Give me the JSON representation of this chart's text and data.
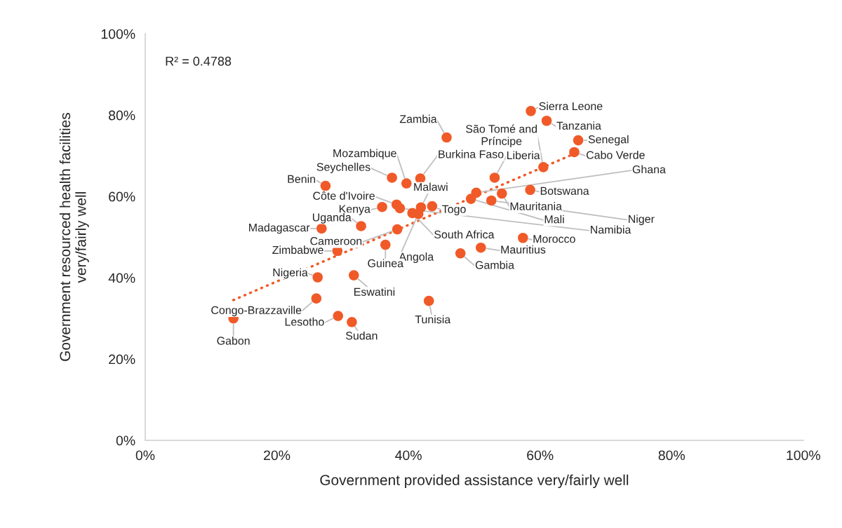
{
  "chart_data": {
    "type": "scatter",
    "xlabel": "Government provided assistance very/fairly well",
    "ylabel": "Government resourced health facilities\nvery/fairly well",
    "marker": "circle",
    "grid": false,
    "xlim": [
      0,
      100
    ],
    "ylim": [
      0,
      100
    ],
    "xticks": [
      {
        "value": 0,
        "label": "0%"
      },
      {
        "value": 20,
        "label": "20%"
      },
      {
        "value": 40,
        "label": "40%"
      },
      {
        "value": 60,
        "label": "60%"
      },
      {
        "value": 80,
        "label": "80%"
      },
      {
        "value": 100,
        "label": "100%"
      }
    ],
    "yticks": [
      {
        "value": 0,
        "label": "0%"
      },
      {
        "value": 20,
        "label": "20%"
      },
      {
        "value": 40,
        "label": "40%"
      },
      {
        "value": 60,
        "label": "60%"
      },
      {
        "value": 80,
        "label": "80%"
      },
      {
        "value": 100,
        "label": "100%"
      }
    ],
    "annotations": [
      "R² = 0.4788"
    ],
    "series": [
      {
        "name": "Sierra Leone",
        "color": "#f05a28",
        "x": [
          58.6
        ],
        "values": [
          81.0
        ]
      },
      {
        "name": "Tanzania",
        "color": "#f05a28",
        "x": [
          61.0
        ],
        "values": [
          78.6
        ]
      },
      {
        "name": "Zambia",
        "color": "#f05a28",
        "x": [
          45.8
        ],
        "values": [
          74.5
        ]
      },
      {
        "name": "São Tomé and\nPríncipe",
        "color": "#f05a28",
        "x": [
          60.5
        ],
        "values": [
          67.2
        ]
      },
      {
        "name": "Senegal",
        "color": "#f05a28",
        "x": [
          65.8
        ],
        "values": [
          73.8
        ]
      },
      {
        "name": "Cabo Verde",
        "color": "#f05a28",
        "x": [
          65.2
        ],
        "values": [
          70.9
        ]
      },
      {
        "name": "Seychelles",
        "color": "#f05a28",
        "x": [
          37.5
        ],
        "values": [
          64.6
        ]
      },
      {
        "name": "Burkina Faso",
        "color": "#f05a28",
        "x": [
          41.8
        ],
        "values": [
          64.4
        ]
      },
      {
        "name": "Mozambique",
        "color": "#f05a28",
        "x": [
          39.7
        ],
        "values": [
          63.2
        ]
      },
      {
        "name": "Benin",
        "color": "#f05a28",
        "x": [
          27.4
        ],
        "values": [
          62.6
        ]
      },
      {
        "name": "Liberia",
        "color": "#f05a28",
        "x": [
          53.1
        ],
        "values": [
          64.6
        ]
      },
      {
        "name": "Ghana",
        "color": "#f05a28",
        "x": [
          50.3
        ],
        "values": [
          60.9
        ]
      },
      {
        "name": "Botswana",
        "color": "#f05a28",
        "x": [
          58.5
        ],
        "values": [
          61.6
        ]
      },
      {
        "name": "Mauritania",
        "color": "#f05a28",
        "x": [
          54.2
        ],
        "values": [
          60.7
        ]
      },
      {
        "name": "Niger",
        "color": "#f05a28",
        "x": [
          52.6
        ],
        "values": [
          59.0
        ]
      },
      {
        "name": "Mali",
        "color": "#f05a28",
        "x": [
          49.5
        ],
        "values": [
          59.4
        ]
      },
      {
        "name": "Namibia",
        "color": "#f05a28",
        "x": [
          38.7
        ],
        "values": [
          57.1
        ]
      },
      {
        "name": "Côte d'Ivoire",
        "color": "#f05a28",
        "x": [
          38.2
        ],
        "values": [
          58.0
        ]
      },
      {
        "name": "Kenya",
        "color": "#f05a28",
        "x": [
          36.0
        ],
        "values": [
          57.4
        ]
      },
      {
        "name": "Malawi",
        "color": "#f05a28",
        "x": [
          41.9
        ],
        "values": [
          57.3
        ]
      },
      {
        "name": "Togo",
        "color": "#f05a28",
        "x": [
          43.6
        ],
        "values": [
          57.6
        ]
      },
      {
        "name": "South Africa",
        "color": "#f05a28",
        "x": [
          40.6
        ],
        "values": [
          55.9
        ]
      },
      {
        "name": "Angola",
        "color": "#f05a28",
        "x": [
          41.5
        ],
        "values": [
          55.7
        ]
      },
      {
        "name": "Uganda",
        "color": "#f05a28",
        "x": [
          32.8
        ],
        "values": [
          52.7
        ]
      },
      {
        "name": "Madagascar",
        "color": "#f05a28",
        "x": [
          26.8
        ],
        "values": [
          52.1
        ]
      },
      {
        "name": "Cameroon",
        "color": "#f05a28",
        "x": [
          38.3
        ],
        "values": [
          51.9
        ]
      },
      {
        "name": "Guinea",
        "color": "#f05a28",
        "x": [
          36.5
        ],
        "values": [
          48.1
        ]
      },
      {
        "name": "Zimbabwe",
        "color": "#f05a28",
        "x": [
          29.2
        ],
        "values": [
          46.6
        ]
      },
      {
        "name": "Nigeria",
        "color": "#f05a28",
        "x": [
          26.2
        ],
        "values": [
          40.1
        ]
      },
      {
        "name": "Eswatini",
        "color": "#f05a28",
        "x": [
          31.7
        ],
        "values": [
          40.6
        ]
      },
      {
        "name": "Morocco",
        "color": "#f05a28",
        "x": [
          57.4
        ],
        "values": [
          49.8
        ]
      },
      {
        "name": "Mauritius",
        "color": "#f05a28",
        "x": [
          51.0
        ],
        "values": [
          47.4
        ]
      },
      {
        "name": "Gambia",
        "color": "#f05a28",
        "x": [
          47.9
        ],
        "values": [
          46.0
        ]
      },
      {
        "name": "Congo-Brazzaville",
        "color": "#f05a28",
        "x": [
          26.0
        ],
        "values": [
          34.9
        ]
      },
      {
        "name": "Tunisia",
        "color": "#f05a28",
        "x": [
          43.1
        ],
        "values": [
          34.3
        ]
      },
      {
        "name": "Lesotho",
        "color": "#f05a28",
        "x": [
          29.3
        ],
        "values": [
          30.6
        ]
      },
      {
        "name": "Sudan",
        "color": "#f05a28",
        "x": [
          31.4
        ],
        "values": [
          29.1
        ]
      },
      {
        "name": "Gabon",
        "color": "#f05a28",
        "x": [
          13.4
        ],
        "values": [
          30.0
        ]
      },
      {
        "type": "line",
        "color": "#f05a28",
        "x": [
          13.4,
          65.8
        ],
        "values": [
          34.5,
          70.9
        ],
        "marker": "none",
        "line_style": "dotted"
      }
    ]
  }
}
